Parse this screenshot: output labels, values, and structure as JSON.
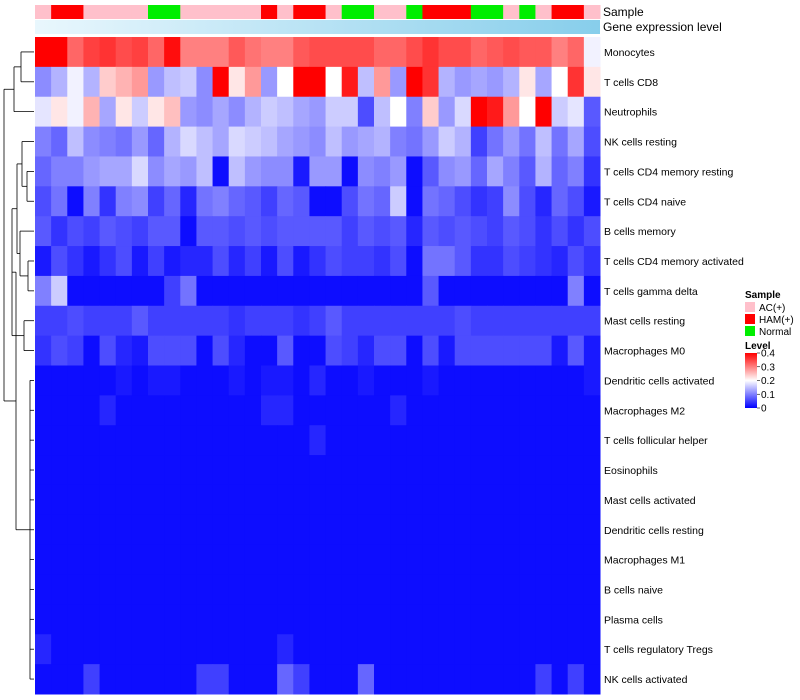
{
  "chart_data": {
    "type": "heatmap",
    "title": "",
    "annotation_tracks": [
      {
        "name": "Sample",
        "label": "Sample"
      },
      {
        "name": "Gene expression level",
        "label": "Gene expression level"
      }
    ],
    "sample_groups": [
      "AC",
      "HAM",
      "HAM",
      "AC",
      "AC",
      "AC",
      "AC",
      "NORM",
      "NORM",
      "AC",
      "AC",
      "AC",
      "AC",
      "AC",
      "HAM",
      "AC",
      "HAM",
      "HAM",
      "AC",
      "NORM",
      "NORM",
      "AC",
      "AC",
      "NORM",
      "HAM",
      "HAM",
      "HAM",
      "NORM",
      "NORM",
      "AC",
      "NORM",
      "AC",
      "HAM",
      "HAM",
      "AC"
    ],
    "rows": [
      {
        "label": "Monocytes",
        "values": [
          0.4,
          0.4,
          0.32,
          0.35,
          0.36,
          0.34,
          0.35,
          0.32,
          0.39,
          0.3,
          0.3,
          0.3,
          0.33,
          0.31,
          0.3,
          0.3,
          0.33,
          0.34,
          0.34,
          0.34,
          0.34,
          0.32,
          0.32,
          0.34,
          0.36,
          0.34,
          0.34,
          0.32,
          0.33,
          0.34,
          0.33,
          0.33,
          0.3,
          0.32,
          0.19
        ]
      },
      {
        "label": "T cells CD8",
        "values": [
          0.11,
          0.14,
          0.19,
          0.14,
          0.24,
          0.26,
          0.28,
          0.12,
          0.15,
          0.16,
          0.11,
          0.4,
          0.22,
          0.28,
          0.12,
          0.2,
          0.4,
          0.4,
          0.2,
          0.38,
          0.15,
          0.28,
          0.12,
          0.4,
          0.36,
          0.14,
          0.12,
          0.13,
          0.12,
          0.14,
          0.22,
          0.13,
          0.2,
          0.36,
          0.22
        ]
      },
      {
        "label": "Neutrophils",
        "values": [
          0.18,
          0.22,
          0.19,
          0.26,
          0.13,
          0.22,
          0.16,
          0.22,
          0.25,
          0.12,
          0.11,
          0.13,
          0.11,
          0.14,
          0.16,
          0.15,
          0.13,
          0.12,
          0.16,
          0.16,
          0.06,
          0.15,
          0.2,
          0.1,
          0.24,
          0.12,
          0.17,
          0.4,
          0.38,
          0.28,
          0.2,
          0.4,
          0.16,
          0.18,
          0.07
        ]
      },
      {
        "label": "NK cells resting",
        "values": [
          0.1,
          0.08,
          0.15,
          0.11,
          0.1,
          0.09,
          0.12,
          0.08,
          0.14,
          0.17,
          0.15,
          0.13,
          0.17,
          0.16,
          0.15,
          0.13,
          0.12,
          0.11,
          0.15,
          0.12,
          0.13,
          0.14,
          0.1,
          0.09,
          0.12,
          0.16,
          0.14,
          0.05,
          0.09,
          0.12,
          0.09,
          0.15,
          0.09,
          0.13,
          0.06
        ]
      },
      {
        "label": "T cells CD4 memory resting",
        "values": [
          0.08,
          0.1,
          0.1,
          0.12,
          0.13,
          0.13,
          0.17,
          0.11,
          0.13,
          0.12,
          0.15,
          0.01,
          0.15,
          0.12,
          0.11,
          0.11,
          0.02,
          0.12,
          0.12,
          0.01,
          0.11,
          0.1,
          0.12,
          0.01,
          0.07,
          0.11,
          0.12,
          0.08,
          0.13,
          0.1,
          0.07,
          0.14,
          0.08,
          0.1,
          0.04
        ]
      },
      {
        "label": "T cells CD4 naive",
        "values": [
          0.06,
          0.09,
          0.01,
          0.1,
          0.04,
          0.1,
          0.11,
          0.05,
          0.08,
          0.03,
          0.09,
          0.1,
          0.08,
          0.07,
          0.05,
          0.08,
          0.07,
          0.01,
          0.01,
          0.06,
          0.09,
          0.08,
          0.16,
          0.01,
          0.09,
          0.08,
          0.06,
          0.04,
          0.05,
          0.11,
          0.06,
          0.03,
          0.08,
          0.06,
          0.02
        ]
      },
      {
        "label": "B cells memory",
        "values": [
          0.07,
          0.04,
          0.06,
          0.05,
          0.07,
          0.06,
          0.05,
          0.07,
          0.07,
          0.01,
          0.07,
          0.07,
          0.06,
          0.07,
          0.06,
          0.07,
          0.07,
          0.07,
          0.07,
          0.05,
          0.07,
          0.06,
          0.07,
          0.03,
          0.07,
          0.06,
          0.07,
          0.06,
          0.05,
          0.07,
          0.06,
          0.04,
          0.06,
          0.04,
          0.06
        ]
      },
      {
        "label": "T cells CD4 memory activated",
        "values": [
          0.02,
          0.06,
          0.04,
          0.02,
          0.04,
          0.06,
          0.02,
          0.05,
          0.02,
          0.03,
          0.03,
          0.06,
          0.03,
          0.05,
          0.02,
          0.06,
          0.02,
          0.04,
          0.06,
          0.05,
          0.05,
          0.04,
          0.06,
          0.01,
          0.09,
          0.09,
          0.07,
          0.04,
          0.04,
          0.06,
          0.05,
          0.04,
          0.03,
          0.06,
          0.04
        ]
      },
      {
        "label": "T cells gamma delta",
        "values": [
          0.1,
          0.16,
          0.01,
          0.01,
          0.01,
          0.01,
          0.01,
          0.01,
          0.05,
          0.09,
          0.01,
          0.01,
          0.01,
          0.01,
          0.01,
          0.01,
          0.01,
          0.01,
          0.01,
          0.01,
          0.01,
          0.01,
          0.01,
          0.01,
          0.07,
          0.01,
          0.01,
          0.01,
          0.01,
          0.01,
          0.01,
          0.01,
          0.01,
          0.1,
          0.01
        ]
      },
      {
        "label": "Mast cells resting",
        "values": [
          0.05,
          0.05,
          0.06,
          0.05,
          0.05,
          0.05,
          0.07,
          0.05,
          0.05,
          0.05,
          0.05,
          0.05,
          0.04,
          0.05,
          0.05,
          0.05,
          0.04,
          0.05,
          0.07,
          0.05,
          0.05,
          0.05,
          0.05,
          0.05,
          0.05,
          0.05,
          0.06,
          0.05,
          0.05,
          0.05,
          0.05,
          0.05,
          0.05,
          0.05,
          0.05
        ]
      },
      {
        "label": "Macrophages M0",
        "values": [
          0.04,
          0.06,
          0.05,
          0.01,
          0.06,
          0.03,
          0.02,
          0.06,
          0.06,
          0.06,
          0.01,
          0.06,
          0.03,
          0.01,
          0.01,
          0.07,
          0.01,
          0.01,
          0.06,
          0.05,
          0.03,
          0.06,
          0.06,
          0.01,
          0.06,
          0.02,
          0.06,
          0.06,
          0.06,
          0.06,
          0.06,
          0.06,
          0.02,
          0.07,
          0.02
        ]
      },
      {
        "label": "Dendritic cells activated",
        "values": [
          0.01,
          0.01,
          0.01,
          0.01,
          0.01,
          0.02,
          0.01,
          0.02,
          0.02,
          0.01,
          0.01,
          0.01,
          0.02,
          0.01,
          0.02,
          0.02,
          0.01,
          0.03,
          0.01,
          0.01,
          0.02,
          0.01,
          0.01,
          0.01,
          0.02,
          0.01,
          0.01,
          0.01,
          0.01,
          0.01,
          0.01,
          0.01,
          0.01,
          0.01,
          0.02
        ]
      },
      {
        "label": "Macrophages M2",
        "values": [
          0.01,
          0.01,
          0.01,
          0.01,
          0.03,
          0.01,
          0.01,
          0.01,
          0.01,
          0.01,
          0.01,
          0.01,
          0.01,
          0.01,
          0.03,
          0.03,
          0.01,
          0.01,
          0.01,
          0.01,
          0.01,
          0.01,
          0.03,
          0.01,
          0.01,
          0.01,
          0.01,
          0.01,
          0.01,
          0.01,
          0.01,
          0.01,
          0.01,
          0.01,
          0.01
        ]
      },
      {
        "label": "T cells follicular helper",
        "values": [
          0.01,
          0.01,
          0.01,
          0.01,
          0.01,
          0.01,
          0.01,
          0.01,
          0.01,
          0.01,
          0.01,
          0.01,
          0.01,
          0.01,
          0.01,
          0.01,
          0.01,
          0.03,
          0.01,
          0.01,
          0.01,
          0.01,
          0.01,
          0.01,
          0.01,
          0.01,
          0.01,
          0.01,
          0.01,
          0.01,
          0.01,
          0.01,
          0.01,
          0.01,
          0.01
        ]
      },
      {
        "label": "Eosinophils",
        "values": [
          0.01,
          0.01,
          0.01,
          0.01,
          0.01,
          0.01,
          0.01,
          0.01,
          0.01,
          0.01,
          0.01,
          0.01,
          0.01,
          0.01,
          0.01,
          0.01,
          0.01,
          0.01,
          0.01,
          0.01,
          0.01,
          0.01,
          0.01,
          0.01,
          0.01,
          0.01,
          0.01,
          0.01,
          0.01,
          0.01,
          0.01,
          0.01,
          0.01,
          0.01,
          0.01
        ]
      },
      {
        "label": "Mast cells activated",
        "values": [
          0.01,
          0.01,
          0.01,
          0.01,
          0.01,
          0.01,
          0.01,
          0.01,
          0.01,
          0.01,
          0.01,
          0.01,
          0.01,
          0.01,
          0.01,
          0.01,
          0.01,
          0.01,
          0.01,
          0.01,
          0.01,
          0.01,
          0.01,
          0.01,
          0.01,
          0.01,
          0.01,
          0.01,
          0.01,
          0.01,
          0.01,
          0.01,
          0.01,
          0.01,
          0.01
        ]
      },
      {
        "label": "Dendritic cells resting",
        "values": [
          0.01,
          0.01,
          0.01,
          0.01,
          0.01,
          0.01,
          0.01,
          0.01,
          0.01,
          0.01,
          0.01,
          0.01,
          0.01,
          0.01,
          0.01,
          0.01,
          0.01,
          0.01,
          0.01,
          0.01,
          0.01,
          0.01,
          0.01,
          0.01,
          0.01,
          0.01,
          0.01,
          0.01,
          0.01,
          0.01,
          0.01,
          0.01,
          0.01,
          0.01,
          0.01
        ]
      },
      {
        "label": "Macrophages M1",
        "values": [
          0.01,
          0.01,
          0.01,
          0.01,
          0.01,
          0.01,
          0.01,
          0.01,
          0.01,
          0.01,
          0.01,
          0.01,
          0.01,
          0.01,
          0.01,
          0.01,
          0.01,
          0.01,
          0.01,
          0.01,
          0.01,
          0.01,
          0.01,
          0.01,
          0.01,
          0.01,
          0.01,
          0.01,
          0.01,
          0.01,
          0.01,
          0.01,
          0.01,
          0.01,
          0.01
        ]
      },
      {
        "label": "B cells naive",
        "values": [
          0.01,
          0.01,
          0.01,
          0.01,
          0.01,
          0.01,
          0.01,
          0.01,
          0.01,
          0.01,
          0.01,
          0.01,
          0.01,
          0.01,
          0.01,
          0.01,
          0.01,
          0.01,
          0.01,
          0.01,
          0.01,
          0.01,
          0.01,
          0.01,
          0.01,
          0.01,
          0.01,
          0.01,
          0.01,
          0.01,
          0.01,
          0.01,
          0.01,
          0.01,
          0.01
        ]
      },
      {
        "label": "Plasma cells",
        "values": [
          0.01,
          0.01,
          0.01,
          0.01,
          0.01,
          0.01,
          0.01,
          0.01,
          0.01,
          0.01,
          0.01,
          0.01,
          0.01,
          0.01,
          0.01,
          0.01,
          0.01,
          0.01,
          0.01,
          0.01,
          0.01,
          0.01,
          0.01,
          0.01,
          0.01,
          0.01,
          0.01,
          0.01,
          0.01,
          0.01,
          0.01,
          0.01,
          0.01,
          0.01,
          0.01
        ]
      },
      {
        "label": "T cells regulatory  Tregs",
        "values": [
          0.03,
          0.01,
          0.01,
          0.01,
          0.01,
          0.01,
          0.01,
          0.01,
          0.01,
          0.01,
          0.01,
          0.01,
          0.01,
          0.01,
          0.01,
          0.03,
          0.01,
          0.01,
          0.01,
          0.01,
          0.01,
          0.01,
          0.01,
          0.01,
          0.01,
          0.01,
          0.01,
          0.01,
          0.01,
          0.01,
          0.01,
          0.01,
          0.01,
          0.01,
          0.01
        ]
      },
      {
        "label": "NK cells activated",
        "values": [
          0.01,
          0.01,
          0.01,
          0.05,
          0.01,
          0.01,
          0.01,
          0.01,
          0.01,
          0.01,
          0.05,
          0.05,
          0.01,
          0.01,
          0.01,
          0.08,
          0.05,
          0.01,
          0.01,
          0.01,
          0.08,
          0.01,
          0.01,
          0.01,
          0.01,
          0.01,
          0.01,
          0.01,
          0.01,
          0.01,
          0.01,
          0.05,
          0.01,
          0.05,
          0.01
        ]
      }
    ],
    "color_scale": {
      "min": 0,
      "max": 0.4,
      "low": "#0000ff",
      "mid": "#ffffff",
      "high": "#ff0000",
      "mid_value": 0.2
    },
    "legend": {
      "sample_title": "Sample",
      "sample_items": [
        {
          "key": "AC",
          "label": "AC(+)",
          "color": "#ffc0cb"
        },
        {
          "key": "HAM",
          "label": "HAM(+)",
          "color": "#ff0000"
        },
        {
          "key": "NORM",
          "label": "Normal",
          "color": "#00ee00"
        }
      ],
      "level_title": "Level",
      "level_ticks": [
        "0.4",
        "0.3",
        "0.2",
        "0.1",
        "0"
      ],
      "level_tick_values": [
        0.4,
        0.3,
        0.2,
        0.1,
        0
      ]
    },
    "expression_track_color": "#87ceeb"
  }
}
